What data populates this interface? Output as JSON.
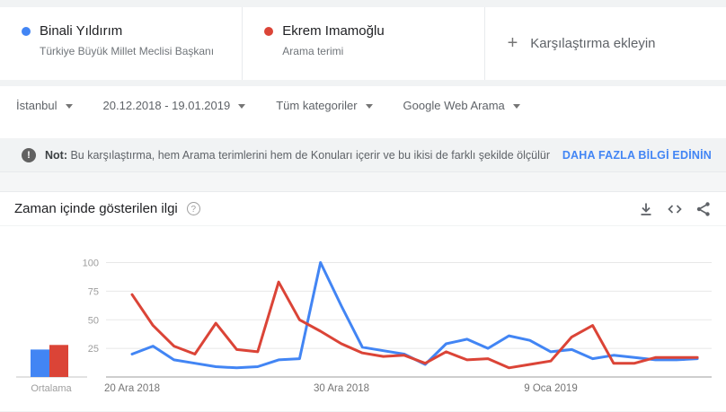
{
  "comparison": {
    "terms": [
      {
        "name": "Binali Yıldırım",
        "subtitle": "Türkiye Büyük Millet Meclisi Başkanı",
        "color": "#4285f4"
      },
      {
        "name": "Ekrem Imamoğlu",
        "subtitle": "Arama terimi",
        "color": "#db4437"
      }
    ],
    "add_plus": "+",
    "add_label": "Karşılaştırma ekleyin"
  },
  "filters": {
    "region": "İstanbul",
    "date_range": "20.12.2018 - 19.01.2019",
    "category": "Tüm kategoriler",
    "search_type": "Google Web Arama"
  },
  "note": {
    "icon_glyph": "!",
    "prefix": "Not:",
    "text": " Bu karşılaştırma, hem Arama terimlerini hem de Konuları içerir ve bu ikisi de farklı şekilde ölçülür.",
    "link": "DAHA FAZLA BİLGİ EDİNİN"
  },
  "chart_panel": {
    "title": "Zaman içinde gösterilen ilgi",
    "help_glyph": "?",
    "icons": [
      "download-icon",
      "embed-icon",
      "share-icon"
    ]
  },
  "chart_data": {
    "type": "line",
    "title": "Zaman içinde gösterilen ilgi",
    "ylim": [
      0,
      100
    ],
    "y_ticks": [
      25,
      50,
      75,
      100
    ],
    "grid": true,
    "x_tick_labels": [
      {
        "index": 0,
        "label": "20 Ara 2018"
      },
      {
        "index": 10,
        "label": "30 Ara 2018"
      },
      {
        "index": 20,
        "label": "9 Oca 2019"
      }
    ],
    "series": [
      {
        "name": "Binali Yıldırım",
        "color": "#4285f4",
        "values": [
          20,
          27,
          15,
          12,
          9,
          8,
          9,
          15,
          16,
          100,
          62,
          26,
          23,
          20,
          11,
          29,
          33,
          25,
          36,
          32,
          22,
          24,
          16,
          19,
          17,
          15,
          15,
          16
        ]
      },
      {
        "name": "Ekrem Imamoğlu",
        "color": "#db4437",
        "values": [
          72,
          45,
          27,
          20,
          47,
          24,
          22,
          83,
          50,
          40,
          29,
          21,
          18,
          19,
          12,
          22,
          15,
          16,
          8,
          11,
          14,
          35,
          45,
          12,
          12,
          17,
          17,
          17
        ]
      }
    ],
    "averages": {
      "label": "Ortalama",
      "values": [
        {
          "name": "Binali Yıldırım",
          "value": 24,
          "color": "#4285f4"
        },
        {
          "name": "Ekrem Imamoğlu",
          "value": 28,
          "color": "#db4437"
        }
      ]
    }
  },
  "colors": {
    "accent_blue": "#4285f4",
    "accent_red": "#db4437",
    "link_blue": "#4285f4"
  }
}
